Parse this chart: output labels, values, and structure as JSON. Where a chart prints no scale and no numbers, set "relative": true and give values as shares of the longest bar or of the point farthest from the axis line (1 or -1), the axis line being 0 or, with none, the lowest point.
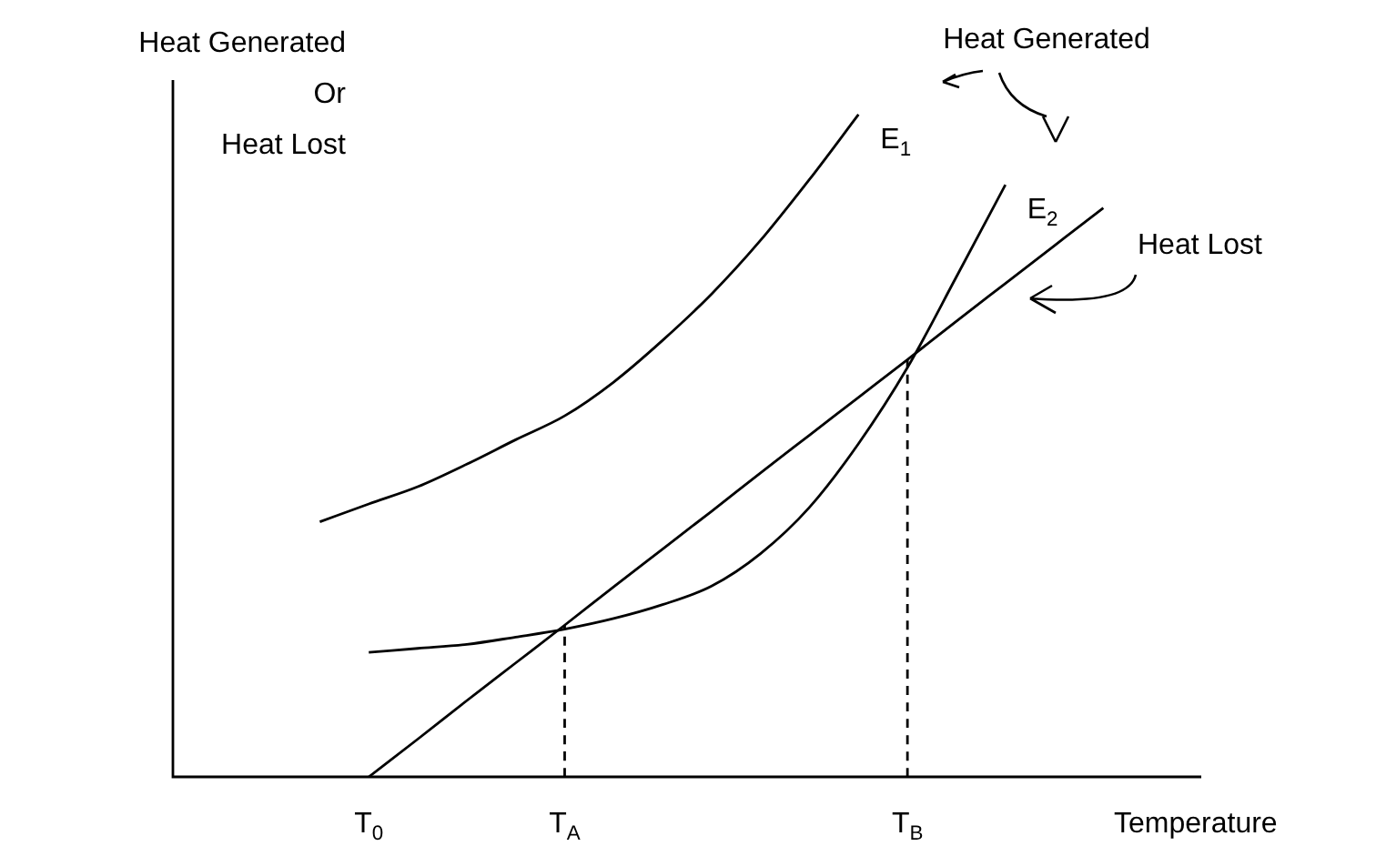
{
  "chart_data": {
    "type": "line",
    "relative": true,
    "xlabel": "Temperature",
    "ylabel": "Heat Generated\nOr\nHeat Lost",
    "categories": [
      null,
      null,
      null,
      null,
      "T$_{0}$",
      null,
      null,
      null,
      "T$_{A}$",
      null,
      null,
      null,
      null,
      null,
      null,
      "T$_{B}$",
      null,
      null,
      null,
      null,
      null,
      null
    ],
    "grid": false,
    "legend": false,
    "marker": "none",
    "annotations": [
      "Heat Generated",
      "Heat Lost"
    ],
    "series": [
      {
        "name": "E$_{1}$",
        "color": "#000000",
        "values": [
          null,
          null,
          null,
          0.385,
          0.412,
          0.438,
          0.472,
          0.509,
          0.545,
          0.596,
          0.659,
          0.729,
          0.81,
          0.902,
          1,
          null,
          null,
          null,
          null,
          null,
          null,
          null
        ]
      },
      {
        "name": "E$_{2}$",
        "color": "#000000",
        "values": [
          null,
          null,
          null,
          null,
          0.188,
          0.194,
          0.2,
          0.211,
          0.223,
          0.239,
          0.26,
          0.288,
          0.337,
          0.407,
          0.503,
          0.618,
          0.755,
          0.894,
          null,
          null,
          null,
          null
        ]
      },
      {
        "color": "#000000",
        "values": [
          null,
          null,
          null,
          null,
          0,
          0.057,
          0.115,
          0.172,
          0.229,
          0.287,
          0.344,
          0.401,
          0.459,
          0.516,
          0.573,
          0.63,
          0.688,
          0.745,
          0.802,
          0.859,
          null,
          null
        ]
      },
      {
        "color": "#000000",
        "line_style": "dashed",
        "x": [
          "T$_{A}$",
          "T$_{A}$"
        ],
        "values": [
          0,
          0.229
        ]
      },
      {
        "color": "#000000",
        "line_style": "dashed",
        "x": [
          "T$_{B}$",
          "T$_{B}$"
        ],
        "values": [
          0,
          0.63
        ]
      }
    ]
  }
}
